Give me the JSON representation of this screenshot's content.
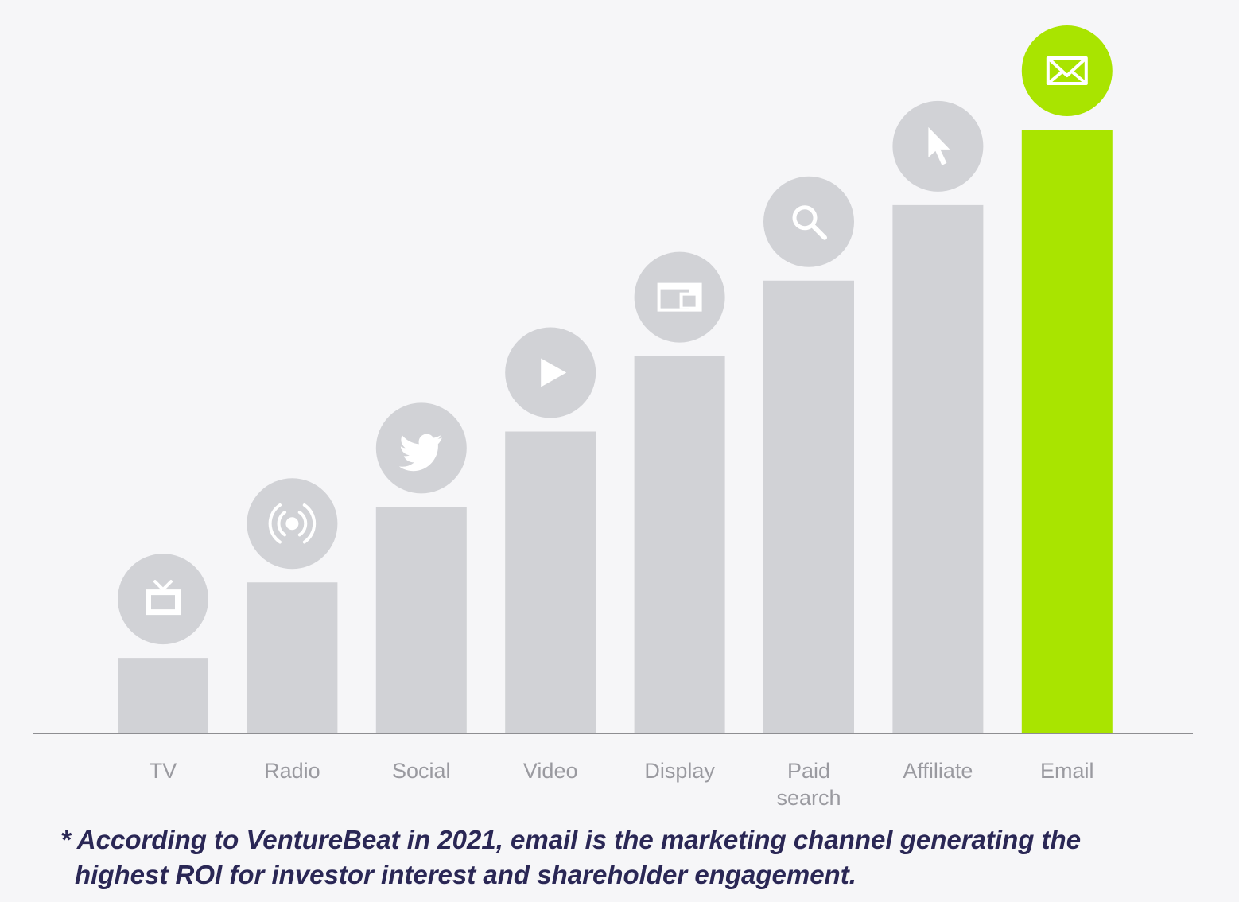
{
  "chart_data": {
    "type": "bar",
    "categories": [
      "TV",
      "Radio",
      "Social",
      "Video",
      "Display",
      "Paid search",
      "Affiliate",
      "Email"
    ],
    "category_lines": [
      [
        "TV"
      ],
      [
        "Radio"
      ],
      [
        "Social"
      ],
      [
        "Video"
      ],
      [
        "Display"
      ],
      [
        "Paid",
        "search"
      ],
      [
        "Affiliate"
      ],
      [
        "Email"
      ]
    ],
    "values": [
      1,
      2,
      3,
      4,
      5,
      6,
      7,
      8
    ],
    "icons": [
      "tv-icon",
      "radio-broadcast-icon",
      "twitter-bird-icon",
      "play-icon",
      "browser-window-icon",
      "search-icon",
      "cursor-icon",
      "envelope-icon"
    ],
    "highlight_index": 7,
    "title": "",
    "xlabel": "",
    "ylabel": "",
    "ylim": [
      0,
      8
    ],
    "grid": false,
    "legend": "none"
  },
  "colors": {
    "bar": "#d1d2d6",
    "highlight": "#a9e400",
    "icon_glyph": "#ffffff",
    "axis": "#8e8e92",
    "label": "#9a9aa0",
    "footnote": "#2a2755"
  },
  "footnote": {
    "line1": "* According to VentureBeat in 2021, email is the marketing channel generating the",
    "line2": "highest ROI for investor interest and shareholder engagement."
  }
}
